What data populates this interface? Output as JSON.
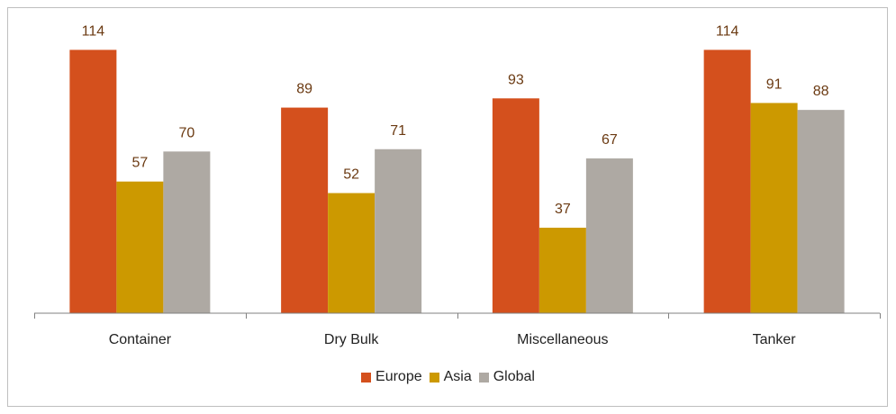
{
  "chart_data": {
    "type": "bar",
    "categories": [
      "Container",
      "Dry Bulk",
      "Miscellaneous",
      "Tanker"
    ],
    "series": [
      {
        "name": "Europe",
        "values": [
          114,
          89,
          93,
          114
        ],
        "color": "#d4501d"
      },
      {
        "name": "Asia",
        "values": [
          57,
          52,
          37,
          91
        ],
        "color": "#cc9900"
      },
      {
        "name": "Global",
        "values": [
          70,
          71,
          67,
          88
        ],
        "color": "#aea9a3"
      }
    ],
    "ylim": [
      0,
      120
    ],
    "grid": false,
    "legend_position": "bottom",
    "value_label_color": "#6b3a12",
    "tick_label_color": "#222222"
  }
}
